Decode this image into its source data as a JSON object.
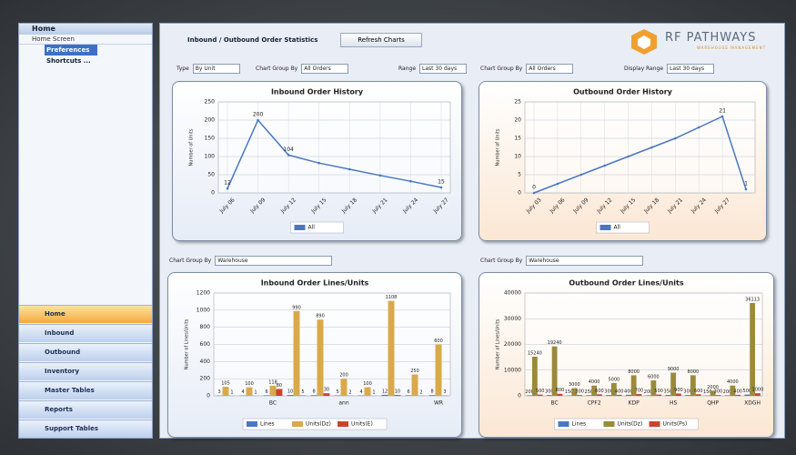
{
  "sidebar": {
    "header": "Home",
    "subheader": "Home Screen",
    "tree": [
      "Preferences ...",
      "Shortcuts ..."
    ],
    "nav": [
      "Home",
      "Inbound",
      "Outbound",
      "Inventory",
      "Master Tables",
      "Reports",
      "Support Tables"
    ]
  },
  "toolbar": {
    "title": "Inbound / Outbound Order Statistics",
    "refresh": "Refresh Charts",
    "logo": "RF PATHWAYS",
    "logo_sub": "WAREHOUSE MANAGEMENT"
  },
  "filters": [
    {
      "label": "Type",
      "value": "By Unit"
    },
    {
      "label": "Chart Group By",
      "value": "All Orders"
    },
    {
      "label": "Range",
      "value": "Last 30 days"
    },
    {
      "label": "Chart Group By",
      "value": "All Orders"
    },
    {
      "label": "Display Range",
      "value": "Last 30 days"
    }
  ],
  "lower_filters": [
    {
      "label": "Chart Group By",
      "value": "Warehouse"
    },
    {
      "label": "Chart Group By",
      "value": "Warehouse"
    }
  ],
  "chart_data": [
    {
      "type": "line",
      "title": "Inbound Order History",
      "y_label": "Number of Units",
      "background": "#e6ecf6",
      "categories": [
        "July 06",
        "July 09",
        "July 12",
        "July 15",
        "July 18",
        "July 21",
        "July 24",
        "July 27"
      ],
      "series": [
        {
          "name": "All",
          "color": "#4a78c0",
          "values": [
            12,
            200,
            104,
            82,
            65,
            48,
            32,
            15
          ],
          "value_labels": [
            "12",
            "200",
            "104",
            null,
            null,
            null,
            null,
            "15"
          ]
        }
      ],
      "ylim": [
        0,
        250
      ],
      "yticks": [
        0,
        50,
        100,
        150,
        200,
        250
      ],
      "grid": true
    },
    {
      "type": "line",
      "title": "Outbound Order History",
      "y_label": "Number of Units",
      "background": "#fbe7d4",
      "categories": [
        "July 03",
        "July 06",
        "July 09",
        "July 12",
        "July 15",
        "July 18",
        "July 21",
        "July 24",
        "July 27",
        null
      ],
      "series": [
        {
          "name": "All",
          "color": "#4a78c0",
          "values": [
            0,
            2.5,
            5,
            7.5,
            10,
            12.5,
            15,
            18,
            21,
            1
          ],
          "value_labels": [
            "0",
            null,
            null,
            null,
            null,
            null,
            null,
            null,
            "21",
            "1"
          ]
        }
      ],
      "ylim": [
        0,
        25
      ],
      "yticks": [
        0,
        5,
        10,
        15,
        20,
        25
      ],
      "grid": true
    },
    {
      "type": "bar",
      "title": "Inbound Order Lines/Units",
      "y_label": "Number of Lines/Units",
      "background": "#e6ecf6",
      "categories": [
        null,
        null,
        "BC",
        null,
        null,
        "ann",
        null,
        null,
        null,
        "WR"
      ],
      "series": [
        {
          "name": "Lines",
          "color": "#4a78c0",
          "values": [
            3,
            4,
            6,
            10,
            8,
            5,
            4,
            12,
            6,
            8
          ]
        },
        {
          "name": "Units(Dz)",
          "color": "#d9a94a",
          "values": [
            105,
            100,
            118,
            990,
            890,
            200,
            100,
            1108,
            250,
            600
          ]
        },
        {
          "name": "Units(E)",
          "color": "#c8452c",
          "values": [
            1,
            1,
            80,
            5,
            30,
            2,
            1,
            10,
            2,
            3
          ]
        }
      ],
      "ylim": [
        0,
        1200
      ],
      "yticks": [
        0,
        200,
        400,
        600,
        800,
        1000,
        1200
      ],
      "grid": true
    },
    {
      "type": "bar",
      "title": "Outbound Order Lines/Units",
      "y_label": "Number of Lines/Units",
      "background": "#fbe7d4",
      "categories": [
        null,
        "BC",
        null,
        "CPF2",
        null,
        "KDP",
        null,
        "HS",
        null,
        "QHP",
        null,
        "XDGH"
      ],
      "series": [
        {
          "name": "Lines",
          "color": "#4a78c0",
          "values": [
            200,
            300,
            150,
            250,
            300,
            400,
            200,
            350,
            300,
            150,
            200,
            500
          ]
        },
        {
          "name": "Units(Dz)",
          "color": "#9a8a3a",
          "values": [
            15240,
            19240,
            3000,
            4000,
            5000,
            8000,
            6000,
            9000,
            8000,
            2000,
            4000,
            36113
          ]
        },
        {
          "name": "Units(Ps)",
          "color": "#c8452c",
          "values": [
            500,
            800,
            300,
            600,
            400,
            700,
            500,
            900,
            600,
            300,
            400,
            1000
          ]
        }
      ],
      "ylim": [
        0,
        40000
      ],
      "yticks": [
        0,
        10000,
        20000,
        30000,
        40000
      ],
      "grid": true
    }
  ]
}
